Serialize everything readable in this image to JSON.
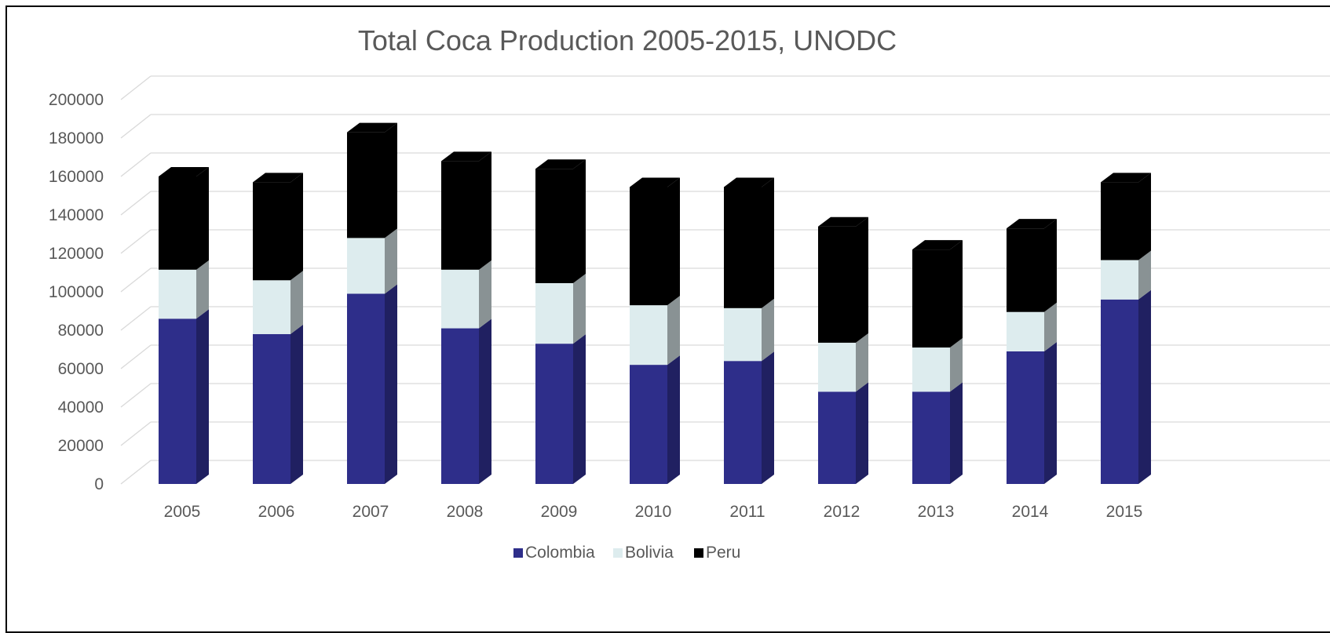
{
  "chart_data": {
    "type": "bar",
    "stacked": true,
    "style": "3d-column",
    "title": "Total Coca Production 2005-2015, UNODC",
    "categories": [
      "2005",
      "2006",
      "2007",
      "2008",
      "2009",
      "2010",
      "2011",
      "2012",
      "2013",
      "2014",
      "2015"
    ],
    "series": [
      {
        "name": "Colombia",
        "color": "#2e2e8a",
        "values": [
          86000,
          78000,
          99000,
          81000,
          73000,
          62000,
          64000,
          48000,
          48000,
          69000,
          96000
        ]
      },
      {
        "name": "Bolivia",
        "color": "#ddecee",
        "values": [
          25500,
          28000,
          29000,
          30500,
          31500,
          31000,
          27500,
          25500,
          23000,
          20500,
          20500
        ]
      },
      {
        "name": "Peru",
        "color": "#000000",
        "values": [
          48500,
          51000,
          55000,
          56500,
          59500,
          61500,
          63000,
          60500,
          51000,
          43500,
          40500
        ]
      }
    ],
    "ylim": [
      0,
      200000
    ],
    "yticks": [
      "0",
      "20000",
      "40000",
      "60000",
      "80000",
      "100000",
      "120000",
      "140000",
      "160000",
      "180000",
      "200000"
    ],
    "grid": true,
    "legend_position": "bottom"
  }
}
